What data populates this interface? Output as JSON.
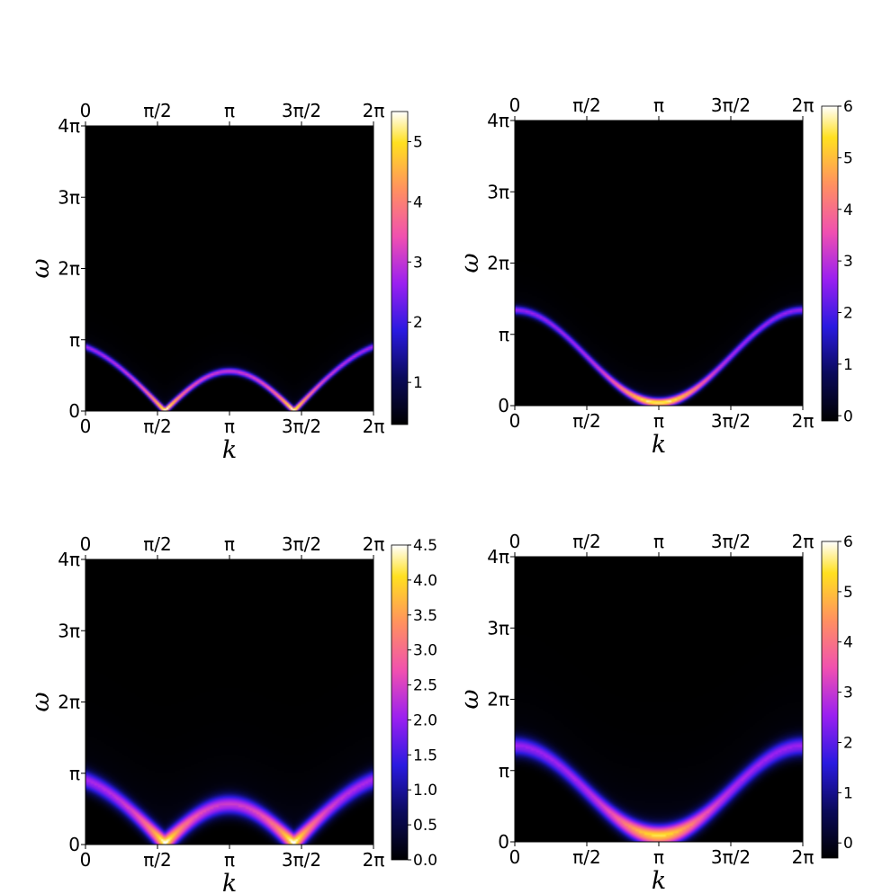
{
  "chart_data": [
    {
      "type": "heatmap",
      "xlabel": "k",
      "ylabel": "ω",
      "x_ticks": [
        "0",
        "π/2",
        "π",
        "3π/2",
        "2π"
      ],
      "y_ticks": [
        "0",
        "π",
        "2π",
        "3π",
        "4π"
      ],
      "xlim": [
        0,
        6.283
      ],
      "ylim": [
        0,
        12.566
      ],
      "colormap": "plasma-like (black-blue-purple-pink-yellow-white)",
      "colorbar": {
        "ticks": [
          "1",
          "2",
          "3",
          "4",
          "5"
        ],
        "range": [
          0.3,
          5.5
        ]
      },
      "spectrum": {
        "shape": "arches",
        "band_max": 2.8,
        "zeros_at": [
          1.73,
          4.55
        ],
        "peak_value": 5.5,
        "width": 0.16
      }
    },
    {
      "type": "heatmap",
      "xlabel": "k",
      "ylabel": "ω",
      "x_ticks": [
        "0",
        "π/2",
        "π",
        "3π/2",
        "2π"
      ],
      "y_ticks": [
        "0",
        "π",
        "2π",
        "3π",
        "4π"
      ],
      "xlim": [
        0,
        6.283
      ],
      "ylim": [
        0,
        12.566
      ],
      "colormap": "plasma-like (black-blue-purple-pink-yellow-white)",
      "colorbar": {
        "ticks": [
          "0",
          "1",
          "2",
          "3",
          "4",
          "5",
          "6"
        ],
        "range": [
          -0.1,
          6
        ]
      },
      "spectrum": {
        "shape": "cosine",
        "band_max": 4.2,
        "band_min": 0.12,
        "peak_value": 6,
        "width": 0.2
      }
    },
    {
      "type": "heatmap",
      "xlabel": "k",
      "ylabel": "ω",
      "x_ticks": [
        "0",
        "π/2",
        "π",
        "3π/2",
        "2π"
      ],
      "y_ticks": [
        "0",
        "π",
        "2π",
        "3π",
        "4π"
      ],
      "xlim": [
        0,
        6.283
      ],
      "ylim": [
        0,
        12.566
      ],
      "colormap": "plasma-like (black-blue-purple-pink-yellow-white)",
      "colorbar": {
        "ticks": [
          "0.0",
          "0.5",
          "1.0",
          "1.5",
          "2.0",
          "2.5",
          "3.0",
          "3.5",
          "4.0",
          "4.5"
        ],
        "range": [
          0,
          4.5
        ]
      },
      "spectrum": {
        "shape": "arches",
        "band_max": 2.8,
        "zeros_at": [
          1.73,
          4.55
        ],
        "peak_value": 4.5,
        "width": 0.45
      }
    },
    {
      "type": "heatmap",
      "xlabel": "k",
      "ylabel": "ω",
      "x_ticks": [
        "0",
        "π/2",
        "π",
        "3π/2",
        "2π"
      ],
      "y_ticks": [
        "0",
        "π",
        "2π",
        "3π",
        "4π"
      ],
      "xlim": [
        0,
        6.283
      ],
      "ylim": [
        0,
        12.566
      ],
      "colormap": "plasma-like (black-blue-purple-pink-yellow-white)",
      "colorbar": {
        "ticks": [
          "0",
          "1",
          "2",
          "3",
          "4",
          "5",
          "6"
        ],
        "range": [
          -0.3,
          6
        ]
      },
      "spectrum": {
        "shape": "cosine",
        "band_max": 4.2,
        "band_min": 0.25,
        "peak_value": 6,
        "width": 0.45
      }
    }
  ]
}
